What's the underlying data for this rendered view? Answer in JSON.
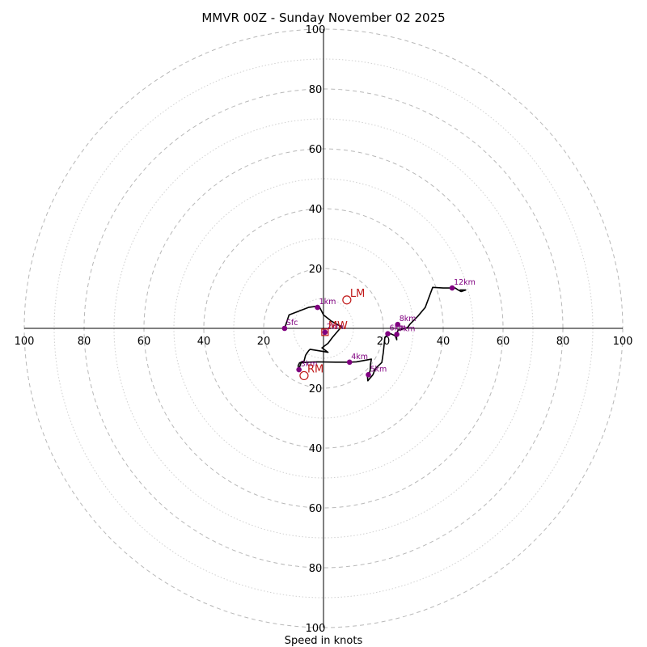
{
  "chart_data": {
    "type": "hodograph",
    "title": "MMVR 00Z - Sunday November 02 2025",
    "xlabel": "Speed in knots",
    "units": "knots",
    "rings": [
      10,
      20,
      30,
      40,
      50,
      60,
      70,
      80,
      90,
      100
    ],
    "labeled_rings": [
      20,
      40,
      60,
      80,
      100
    ],
    "axis_tick_labels": [
      "20",
      "40",
      "60",
      "80",
      "100"
    ],
    "range": [
      -100,
      100
    ],
    "trace": [
      [
        -13,
        0
      ],
      [
        -11.5,
        4.5
      ],
      [
        -5,
        7
      ],
      [
        -1.5,
        7.5
      ],
      [
        0,
        4.5
      ],
      [
        2.5,
        2.5
      ],
      [
        6,
        0.5
      ],
      [
        3,
        -3
      ],
      [
        1.5,
        -5
      ],
      [
        -0.5,
        -6.5
      ],
      [
        1.5,
        -8
      ],
      [
        -4.5,
        -7
      ],
      [
        -5,
        -7.5
      ],
      [
        -6,
        -9
      ],
      [
        -6.5,
        -11
      ],
      [
        -8,
        -11.5
      ],
      [
        -8.5,
        -12.5
      ],
      [
        -8.3,
        -13.8
      ],
      [
        -7.5,
        -11.5
      ],
      [
        -5,
        -11.3
      ],
      [
        -2,
        -11.2
      ],
      [
        4,
        -11.3
      ],
      [
        8.7,
        -11.3
      ],
      [
        11,
        -11.2
      ],
      [
        16,
        -10.3
      ],
      [
        15.7,
        -12
      ],
      [
        15.6,
        -14
      ],
      [
        15.2,
        -15.5
      ],
      [
        14.7,
        -16.2
      ],
      [
        14.8,
        -17.5
      ],
      [
        16.5,
        -15.5
      ],
      [
        17.3,
        -13.5
      ],
      [
        19.5,
        -11.4
      ],
      [
        20,
        -8
      ],
      [
        20.5,
        -3
      ],
      [
        21.5,
        -2
      ],
      [
        22.5,
        -1.8
      ],
      [
        24,
        -2.5
      ],
      [
        24.5,
        -3.8
      ],
      [
        24.3,
        -2
      ],
      [
        25,
        -0.5
      ],
      [
        25.8,
        -0.5
      ],
      [
        27,
        0
      ],
      [
        28,
        0.2
      ],
      [
        29,
        1.5
      ],
      [
        31.5,
        4
      ],
      [
        34,
        7
      ],
      [
        36.5,
        13.7
      ],
      [
        40,
        13.5
      ],
      [
        44,
        13.5
      ],
      [
        45,
        12.8
      ],
      [
        46,
        12.3
      ],
      [
        47.5,
        12.8
      ],
      [
        45.5,
        12.8
      ]
    ],
    "height_markers": [
      {
        "label": "Sfc",
        "u": -13,
        "v": 0
      },
      {
        "label": "1km",
        "u": -2,
        "v": 7
      },
      {
        "label": "2km",
        "u": 0.5,
        "v": -1.3
      },
      {
        "label": "3km",
        "u": -8.2,
        "v": -13.8
      },
      {
        "label": "4km",
        "u": 8.7,
        "v": -11.3
      },
      {
        "label": "5km",
        "u": 15,
        "v": -15.5
      },
      {
        "label": "6km",
        "u": 21.5,
        "v": -1.8
      },
      {
        "label": "7km",
        "u": 24.5,
        "v": -2
      },
      {
        "label": "8km",
        "u": 24.8,
        "v": 1.3
      },
      {
        "label": "12km",
        "u": 43,
        "v": 13.5
      }
    ],
    "storm_motion": [
      {
        "label": "LM",
        "u": 7.8,
        "v": 9.5,
        "shape": "circle"
      },
      {
        "label": "RM",
        "u": -6.5,
        "v": -15.8,
        "shape": "circle"
      },
      {
        "label": "MW",
        "u": 0.5,
        "v": -1.3,
        "shape": "square"
      }
    ],
    "colors": {
      "trace": "#000000",
      "marker": "#800080",
      "storm": "#c01818",
      "grid": "#b8b8b8",
      "grid_minor": "#d0d0d0"
    }
  }
}
